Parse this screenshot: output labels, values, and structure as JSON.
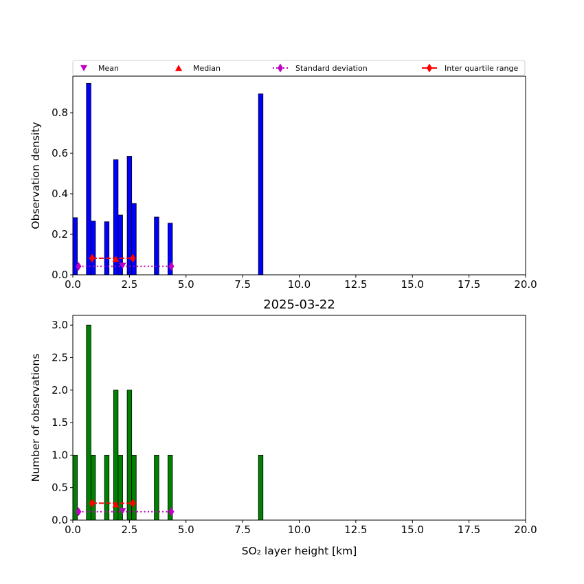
{
  "chart_data": [
    {
      "type": "bar",
      "title": "",
      "xlabel": "",
      "ylabel": "Observation density",
      "xlim": [
        0,
        20
      ],
      "ylim": [
        0,
        0.98
      ],
      "xticks": [
        "0.0",
        "2.5",
        "5.0",
        "7.5",
        "10.0",
        "12.5",
        "15.0",
        "17.5",
        "20.0"
      ],
      "yticks": [
        "0.0",
        "0.2",
        "0.4",
        "0.6",
        "0.8"
      ],
      "bar_color": "#0000ff",
      "bin_width": 0.2,
      "bars": [
        {
          "x": 0.0,
          "value": 0.282
        },
        {
          "x": 0.6,
          "value": 0.945
        },
        {
          "x": 0.8,
          "value": 0.265
        },
        {
          "x": 1.4,
          "value": 0.262
        },
        {
          "x": 1.8,
          "value": 0.568
        },
        {
          "x": 2.0,
          "value": 0.295
        },
        {
          "x": 2.4,
          "value": 0.585
        },
        {
          "x": 2.6,
          "value": 0.352
        },
        {
          "x": 3.6,
          "value": 0.285
        },
        {
          "x": 4.2,
          "value": 0.255
        },
        {
          "x": 8.2,
          "value": 0.893
        }
      ],
      "mean": {
        "x": 2.2,
        "y": 0.045
      },
      "median": {
        "x": 1.9,
        "y": 0.078
      },
      "std": {
        "x": [
          0.25,
          4.35
        ],
        "y": 0.042
      },
      "iqr": {
        "x": [
          0.85,
          2.65
        ],
        "y": 0.082
      }
    },
    {
      "type": "bar",
      "title": "2025-03-22",
      "xlabel": "SO₂ layer height [km]",
      "ylabel": "Number of observations",
      "xlim": [
        0,
        20
      ],
      "ylim": [
        0,
        3.15
      ],
      "xticks": [
        "0.0",
        "2.5",
        "5.0",
        "7.5",
        "10.0",
        "12.5",
        "15.0",
        "17.5",
        "20.0"
      ],
      "yticks": [
        "0.0",
        "0.5",
        "1.0",
        "1.5",
        "2.0",
        "2.5",
        "3.0"
      ],
      "bar_color": "#008000",
      "bin_width": 0.2,
      "bars": [
        {
          "x": 0.0,
          "value": 1
        },
        {
          "x": 0.6,
          "value": 3
        },
        {
          "x": 0.8,
          "value": 1
        },
        {
          "x": 1.4,
          "value": 1
        },
        {
          "x": 1.8,
          "value": 2
        },
        {
          "x": 2.0,
          "value": 1
        },
        {
          "x": 2.4,
          "value": 2
        },
        {
          "x": 2.6,
          "value": 1
        },
        {
          "x": 3.6,
          "value": 1
        },
        {
          "x": 4.2,
          "value": 1
        },
        {
          "x": 8.2,
          "value": 1
        }
      ],
      "mean": {
        "x": 2.2,
        "y": 0.14
      },
      "median": {
        "x": 1.9,
        "y": 0.24
      },
      "std": {
        "x": [
          0.25,
          4.35
        ],
        "y": 0.13
      },
      "iqr": {
        "x": [
          0.85,
          2.65
        ],
        "y": 0.26
      }
    }
  ],
  "legend": {
    "placement": "top",
    "items": [
      {
        "label": "Mean",
        "marker": "triangle-down",
        "color": "#bf00bf"
      },
      {
        "label": "Median",
        "marker": "triangle-up",
        "color": "#ff0000"
      },
      {
        "label": "Standard deviation",
        "marker": "diamond-dotted",
        "color": "#bf00bf"
      },
      {
        "label": "Inter quartile range",
        "marker": "diamond-dashed",
        "color": "#ff0000"
      }
    ]
  }
}
